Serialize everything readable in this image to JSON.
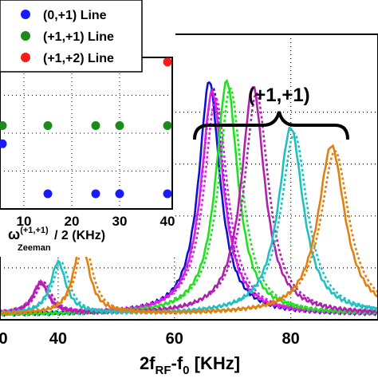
{
  "chart_data": [
    {
      "type": "line",
      "xlabel_main": "2f",
      "xlabel_sub_rf": "RF",
      "xlabel_minus": "-f",
      "xlabel_sub_0": "0",
      "xlabel_unit": " [KHz]",
      "xlim": [
        30,
        95
      ],
      "ylim": [
        0,
        1.1
      ],
      "xticks": [
        "40",
        "60",
        "80"
      ],
      "left_partial_tick": "0",
      "grid": true,
      "annotation": "(+1,+1)",
      "series": [
        {
          "color": "#1010d0",
          "center": 66,
          "height": 0.9,
          "width": 2.2,
          "side_center": null,
          "side_height": 0
        },
        {
          "color": "#e020e0",
          "center": 66.5,
          "height": 0.86,
          "width": 2.3,
          "side_center": 37,
          "side_height": 0.12
        },
        {
          "color": "#20e020",
          "center": 69,
          "height": 0.9,
          "width": 2.3,
          "side_center": null,
          "side_height": 0
        },
        {
          "color": "#b020b0",
          "center": 73.5,
          "height": 0.88,
          "width": 2.4,
          "side_center": 37,
          "side_height": 0.12
        },
        {
          "color": "#20c0c0",
          "center": 80,
          "height": 0.72,
          "width": 2.6,
          "side_center": 40,
          "side_height": 0.2
        },
        {
          "color": "#e08010",
          "center": 87,
          "height": 0.65,
          "width": 2.8,
          "side_center": 44,
          "side_height": 0.28
        }
      ]
    },
    {
      "type": "scatter",
      "xlabel_omega": "ω",
      "xlabel_super": "(+1,+1)",
      "xlabel_sub": "Zeeman",
      "xlabel_rest": " / 2 (KHz)",
      "xlim": [
        5,
        41
      ],
      "xticks": [
        "10",
        "20",
        "30",
        "40"
      ],
      "legend_position": "top-left",
      "series": [
        {
          "name": "(0,+1) Line",
          "color": "#1a1aff",
          "points": [
            [
              5.5,
              0.43
            ],
            [
              15,
              0.1
            ],
            [
              25,
              0.1
            ],
            [
              30,
              0.1
            ],
            [
              40,
              0.1
            ]
          ]
        },
        {
          "name": "(+1,+1) Line",
          "color": "#1a8a1a",
          "points": [
            [
              5.5,
              0.55
            ],
            [
              15,
              0.55
            ],
            [
              25,
              0.55
            ],
            [
              30,
              0.55
            ],
            [
              40,
              0.55
            ]
          ]
        },
        {
          "name": "(+1,+2) Line",
          "color": "#ff1a1a",
          "points": [
            [
              5.5,
              0.97
            ],
            [
              15,
              0.97
            ],
            [
              25,
              0.97
            ],
            [
              30,
              0.97
            ],
            [
              40,
              0.97
            ]
          ]
        }
      ]
    }
  ]
}
